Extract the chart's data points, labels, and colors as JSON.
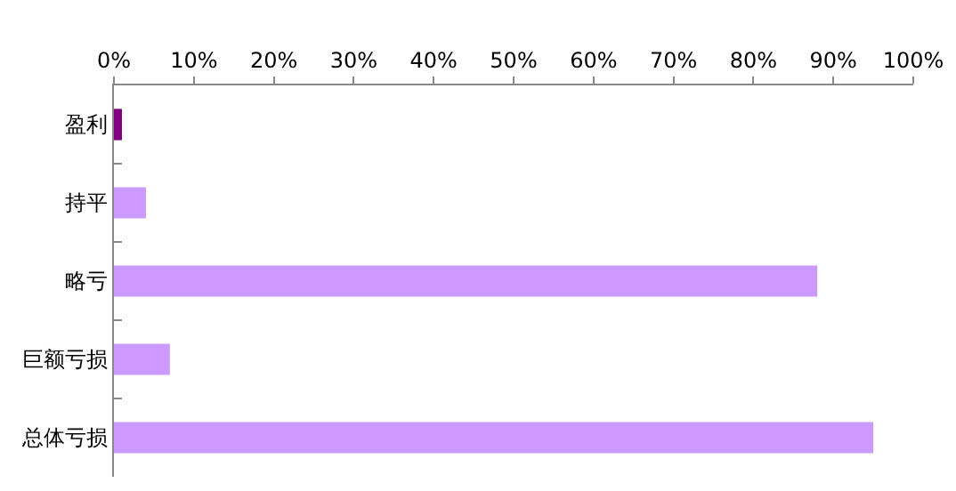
{
  "chart_data": {
    "type": "bar",
    "orientation": "horizontal",
    "categories": [
      "盈利",
      "持平",
      "略亏",
      "巨额亏损",
      "总体亏损"
    ],
    "values": [
      1,
      4,
      88,
      7,
      95
    ],
    "colors": [
      "#800080",
      "#cc99ff",
      "#cc99ff",
      "#cc99ff",
      "#cc99ff"
    ],
    "xlim": [
      0,
      100
    ],
    "xticks": [
      {
        "value": 0,
        "label": "0%"
      },
      {
        "value": 10,
        "label": "10%"
      },
      {
        "value": 20,
        "label": "20%"
      },
      {
        "value": 30,
        "label": "30%"
      },
      {
        "value": 40,
        "label": "40%"
      },
      {
        "value": 50,
        "label": "50%"
      },
      {
        "value": 60,
        "label": "60%"
      },
      {
        "value": 70,
        "label": "70%"
      },
      {
        "value": 80,
        "label": "80%"
      },
      {
        "value": 90,
        "label": "90%"
      },
      {
        "value": 100,
        "label": "100%"
      }
    ],
    "grid": false,
    "legend": false
  }
}
